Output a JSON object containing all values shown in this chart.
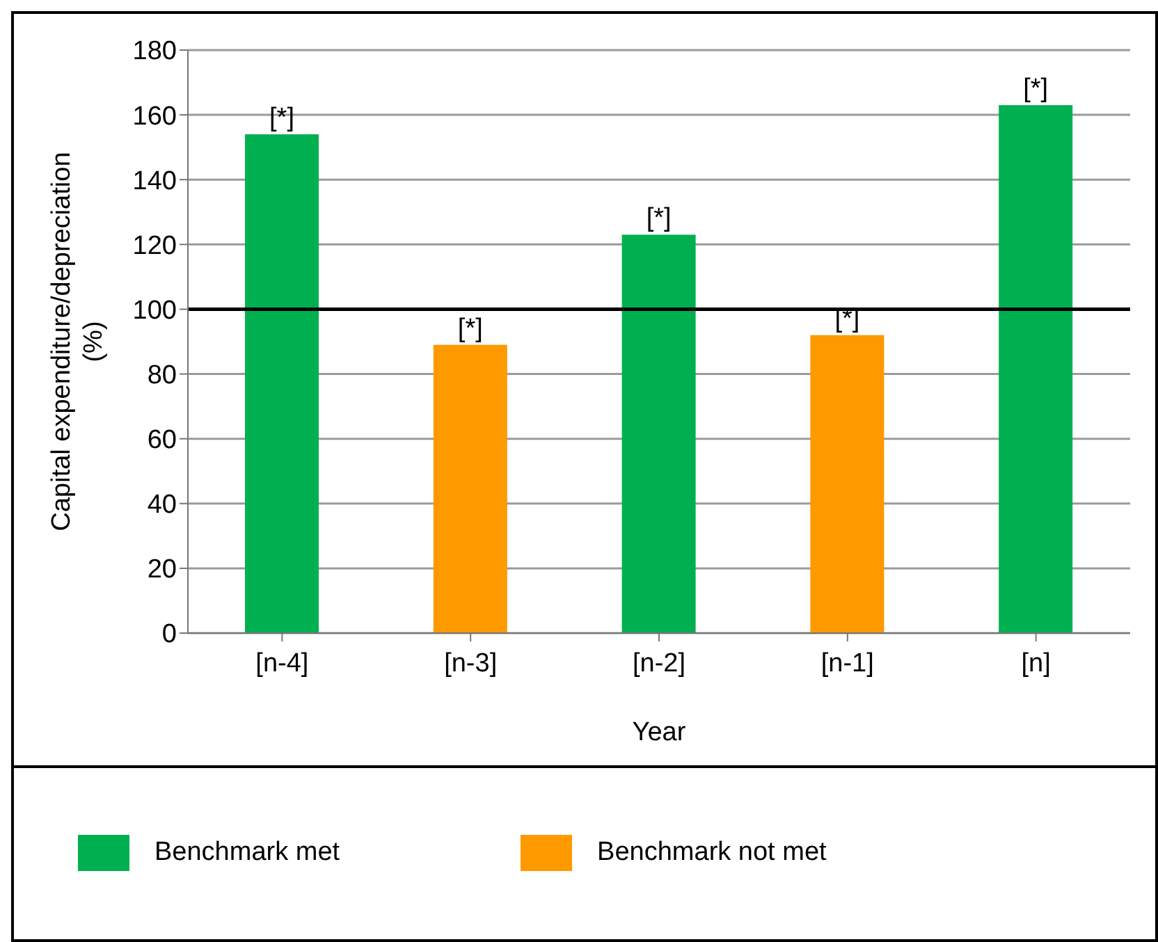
{
  "chart_data": {
    "type": "bar",
    "xlabel": "Year",
    "ylabel": "Capital expenditure/depreciation (%)",
    "categories": [
      "[n-4]",
      "[n-3]",
      "[n-2]",
      "[n-1]",
      "[n]"
    ],
    "stacked": true,
    "series": [
      {
        "name": "Benchmark met",
        "color": "#00b050",
        "values": [
          154,
          null,
          123,
          null,
          163
        ],
        "value_labels": [
          "[*]",
          null,
          "[*]",
          null,
          "[*]"
        ]
      },
      {
        "name": "Benchmark not met",
        "color": "#ff9900",
        "values": [
          null,
          89,
          null,
          92,
          null
        ],
        "value_labels": [
          null,
          "[*]",
          null,
          "[*]",
          null
        ]
      }
    ],
    "ylim": [
      0,
      180
    ],
    "yticks": [
      0,
      20,
      40,
      60,
      80,
      100,
      120,
      140,
      160,
      180
    ],
    "grid": "y",
    "legend": "bottom",
    "ref_lines": [
      {
        "axis": "y",
        "value": 100,
        "color": "#000000"
      }
    ]
  }
}
